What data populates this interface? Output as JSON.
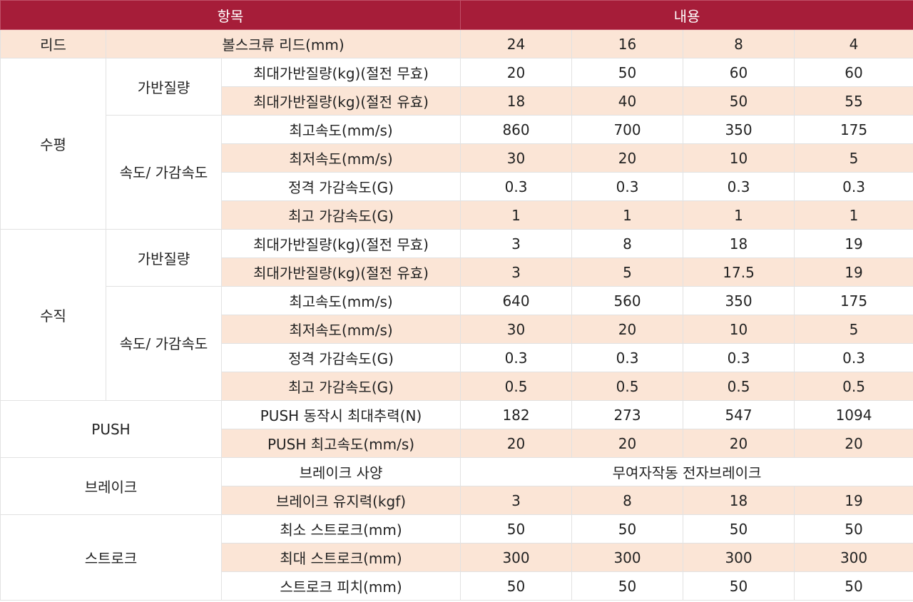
{
  "header": {
    "item": "항목",
    "content": "내용"
  },
  "lead": {
    "label": "리드",
    "param": "볼스크류 리드(mm)",
    "values": [
      "24",
      "16",
      "8",
      "4"
    ]
  },
  "horizontal": {
    "label": "수평",
    "payload_label": "가반질량",
    "speed_label": "속도/ 가감속도",
    "rows": [
      {
        "param": "최대가반질량(kg)(절전 무효)",
        "values": [
          "20",
          "50",
          "60",
          "60"
        ]
      },
      {
        "param": "최대가반질량(kg)(절전 유효)",
        "values": [
          "18",
          "40",
          "50",
          "55"
        ]
      },
      {
        "param": "최고속도(mm/s)",
        "values": [
          "860",
          "700",
          "350",
          "175"
        ]
      },
      {
        "param": "최저속도(mm/s)",
        "values": [
          "30",
          "20",
          "10",
          "5"
        ]
      },
      {
        "param": "정격 가감속도(G)",
        "values": [
          "0.3",
          "0.3",
          "0.3",
          "0.3"
        ]
      },
      {
        "param": "최고 가감속도(G)",
        "values": [
          "1",
          "1",
          "1",
          "1"
        ]
      }
    ]
  },
  "vertical": {
    "label": "수직",
    "payload_label": "가반질량",
    "speed_label": "속도/ 가감속도",
    "rows": [
      {
        "param": "최대가반질량(kg)(절전 무효)",
        "values": [
          "3",
          "8",
          "18",
          "19"
        ]
      },
      {
        "param": "최대가반질량(kg)(절전 유효)",
        "values": [
          "3",
          "5",
          "17.5",
          "19"
        ]
      },
      {
        "param": "최고속도(mm/s)",
        "values": [
          "640",
          "560",
          "350",
          "175"
        ]
      },
      {
        "param": "최저속도(mm/s)",
        "values": [
          "30",
          "20",
          "10",
          "5"
        ]
      },
      {
        "param": "정격 가감속도(G)",
        "values": [
          "0.3",
          "0.3",
          "0.3",
          "0.3"
        ]
      },
      {
        "param": "최고 가감속도(G)",
        "values": [
          "0.5",
          "0.5",
          "0.5",
          "0.5"
        ]
      }
    ]
  },
  "push": {
    "label": "PUSH",
    "rows": [
      {
        "param": "PUSH 동작시 최대추력(N)",
        "values": [
          "182",
          "273",
          "547",
          "1094"
        ]
      },
      {
        "param": "PUSH 최고속도(mm/s)",
        "values": [
          "20",
          "20",
          "20",
          "20"
        ]
      }
    ]
  },
  "brake": {
    "label": "브레이크",
    "spec_param": "브레이크 사양",
    "spec_value": "무여자작동 전자브레이크",
    "hold_param": "브레이크 유지력(kgf)",
    "hold_values": [
      "3",
      "8",
      "18",
      "19"
    ]
  },
  "stroke": {
    "label": "스트로크",
    "rows": [
      {
        "param": "최소 스트로크(mm)",
        "values": [
          "50",
          "50",
          "50",
          "50"
        ]
      },
      {
        "param": "최대 스트로크(mm)",
        "values": [
          "300",
          "300",
          "300",
          "300"
        ]
      },
      {
        "param": "스트로크 피치(mm)",
        "values": [
          "50",
          "50",
          "50",
          "50"
        ]
      }
    ]
  },
  "colors": {
    "header_bg": "#a61d39",
    "shaded_row": "#fbe5d6",
    "border": "#e2e2e2"
  }
}
